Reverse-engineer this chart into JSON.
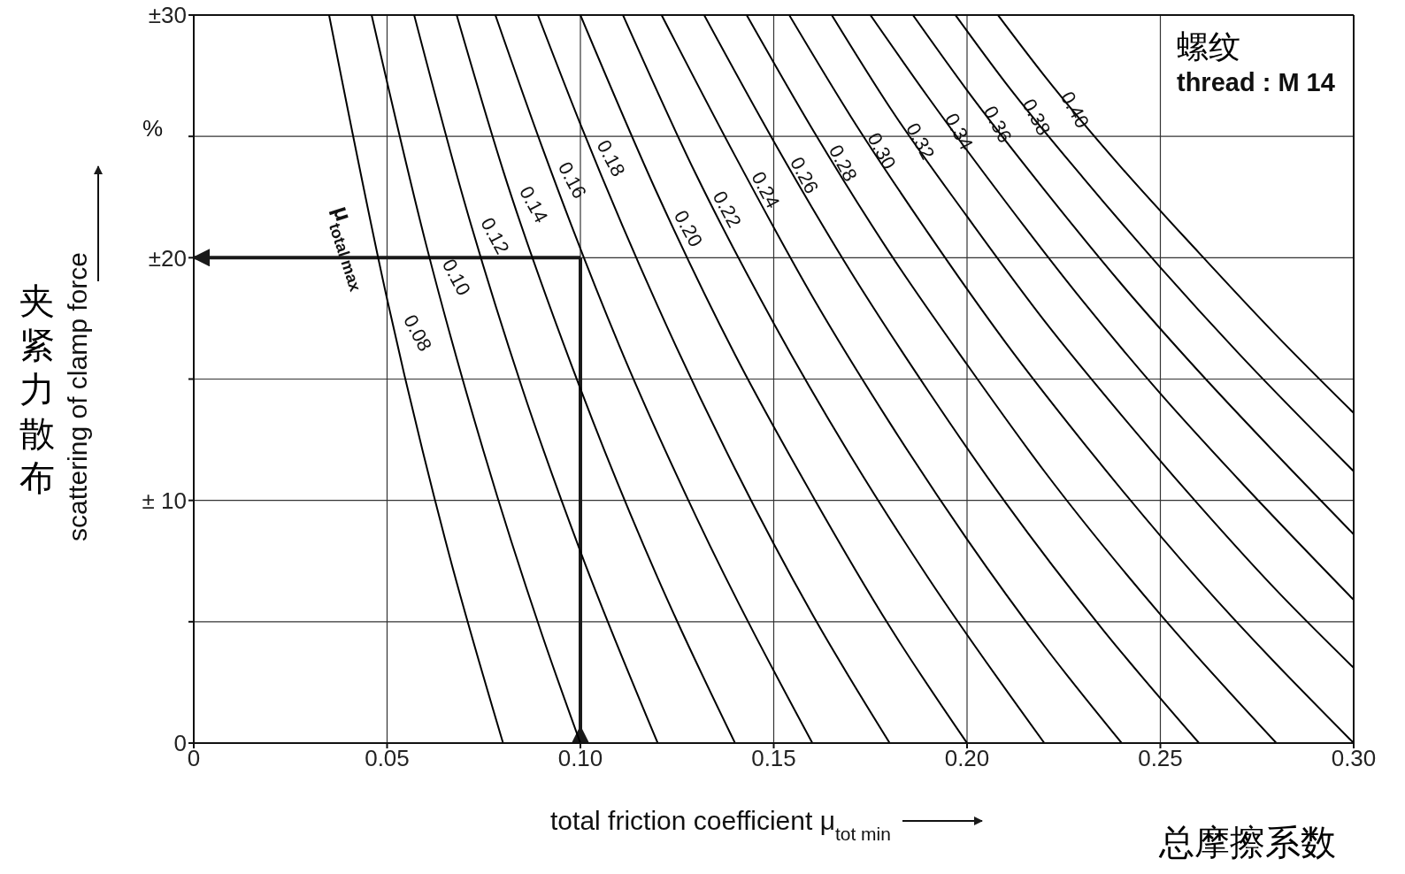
{
  "chart_data": {
    "type": "line",
    "xlabel": "total friction coefficient μ$_{tot min}$",
    "ylabel": "scattering of clamp force",
    "legend_title": "μ$_{total max}$",
    "annotations": [
      "夹紧力散布",
      "总摩擦系数",
      "螺纹",
      "thread : M 14",
      "%"
    ],
    "xlim": [
      0,
      0.3
    ],
    "xticks": [
      0,
      0.05,
      {
        "value": 0.1,
        "label": "0.10"
      },
      0.15,
      {
        "value": 0.2,
        "label": "0.20"
      },
      0.25,
      {
        "value": 0.3,
        "label": "0.30"
      }
    ],
    "ylim": [
      0,
      30
    ],
    "yticks": [
      0,
      {
        "value": 5,
        "label": null
      },
      {
        "value": 10,
        "label": "± 10"
      },
      {
        "value": 15,
        "label": null
      },
      {
        "value": 20,
        "label": "±20"
      },
      {
        "value": 25,
        "label": null
      },
      {
        "value": 30,
        "label": "±30"
      }
    ],
    "grid": true,
    "legend": false,
    "marker": "none",
    "line_style": "solid",
    "ref_lines": [
      {
        "axis": "x",
        "value": 0.1,
        "label": null,
        "color": "#1a1a1a"
      },
      {
        "axis": "y",
        "value": 20,
        "label": null,
        "color": "#1a1a1a"
      }
    ],
    "series": [
      {
        "name": "0.08",
        "color": "#000000",
        "x": [
          0.035,
          0.05,
          0.065,
          0.08
        ],
        "values": [
          30,
          18.3,
          8.4,
          0
        ]
      },
      {
        "name": "0.10",
        "color": "#000000",
        "x": [
          0.046,
          0.06,
          0.075,
          0.09,
          0.1
        ],
        "values": [
          30,
          20.6,
          12.0,
          4.5,
          0
        ]
      },
      {
        "name": "0.12",
        "color": "#000000",
        "x": [
          0.057,
          0.07,
          0.085,
          0.1,
          0.12
        ],
        "values": [
          30,
          22.3,
          14.6,
          7.9,
          0
        ]
      },
      {
        "name": "0.14",
        "color": "#000000",
        "x": [
          0.068,
          0.08,
          0.1,
          0.12,
          0.14
        ],
        "values": [
          30,
          23.6,
          14.6,
          6.8,
          0
        ]
      },
      {
        "name": "0.16",
        "color": "#000000",
        "x": [
          0.078,
          0.09,
          0.11,
          0.13,
          0.16
        ],
        "values": [
          30,
          24.6,
          16.4,
          9.3,
          0
        ]
      },
      {
        "name": "0.18",
        "color": "#000000",
        "x": [
          0.089,
          0.1,
          0.12,
          0.14,
          0.16,
          0.18
        ],
        "values": [
          30,
          25.5,
          18.0,
          11.3,
          5.3,
          0
        ]
      },
      {
        "name": "0.20",
        "color": "#000000",
        "x": [
          0.1,
          0.12,
          0.14,
          0.16,
          0.18,
          0.2
        ],
        "values": [
          30,
          22.6,
          16.0,
          10.2,
          4.8,
          0
        ]
      },
      {
        "name": "0.22",
        "color": "#000000",
        "x": [
          0.111,
          0.13,
          0.15,
          0.17,
          0.19,
          0.22
        ],
        "values": [
          30,
          23.4,
          17.3,
          11.8,
          6.8,
          0
        ]
      },
      {
        "name": "0.24",
        "color": "#000000",
        "x": [
          0.121,
          0.14,
          0.16,
          0.18,
          0.2,
          0.22,
          0.24
        ],
        "values": [
          30,
          24.2,
          18.4,
          13.2,
          8.4,
          4.0,
          0
        ]
      },
      {
        "name": "0.26",
        "color": "#000000",
        "x": [
          0.132,
          0.15,
          0.17,
          0.19,
          0.21,
          0.235,
          0.26
        ],
        "values": [
          30,
          24.8,
          19.4,
          14.5,
          9.9,
          4.7,
          0
        ]
      },
      {
        "name": "0.28",
        "color": "#000000",
        "x": [
          0.143,
          0.16,
          0.18,
          0.2,
          0.22,
          0.25,
          0.28
        ],
        "values": [
          30,
          25.3,
          20.2,
          15.6,
          11.2,
          5.3,
          0
        ]
      },
      {
        "name": "0.30",
        "color": "#000000",
        "x": [
          0.154,
          0.17,
          0.19,
          0.21,
          0.23,
          0.26,
          0.3
        ],
        "values": [
          30,
          25.8,
          21.0,
          16.5,
          12.4,
          6.7,
          0
        ]
      },
      {
        "name": "0.32",
        "color": "#000000",
        "x": [
          0.165,
          0.18,
          0.2,
          0.22,
          0.24,
          0.26,
          0.28,
          0.3
        ],
        "values": [
          30,
          26.2,
          21.7,
          17.4,
          13.5,
          9.8,
          6.3,
          3.1
        ]
      },
      {
        "name": "0.34",
        "color": "#000000",
        "x": [
          0.175,
          0.19,
          0.21,
          0.23,
          0.25,
          0.27,
          0.3
        ],
        "values": [
          30,
          26.6,
          22.3,
          18.2,
          14.4,
          10.9,
          5.9
        ]
      },
      {
        "name": "0.36",
        "color": "#000000",
        "x": [
          0.186,
          0.2,
          0.22,
          0.24,
          0.26,
          0.28,
          0.3
        ],
        "values": [
          30,
          26.9,
          22.8,
          18.9,
          15.3,
          11.9,
          8.6
        ]
      },
      {
        "name": "0.38",
        "color": "#000000",
        "x": [
          0.197,
          0.21,
          0.23,
          0.25,
          0.27,
          0.3
        ],
        "values": [
          30,
          27.2,
          23.3,
          19.6,
          16.1,
          11.2
        ]
      },
      {
        "name": "0.40",
        "color": "#000000",
        "x": [
          0.208,
          0.22,
          0.24,
          0.26,
          0.28,
          0.3
        ],
        "values": [
          30,
          27.5,
          23.7,
          20.2,
          16.8,
          13.6
        ]
      }
    ]
  }
}
